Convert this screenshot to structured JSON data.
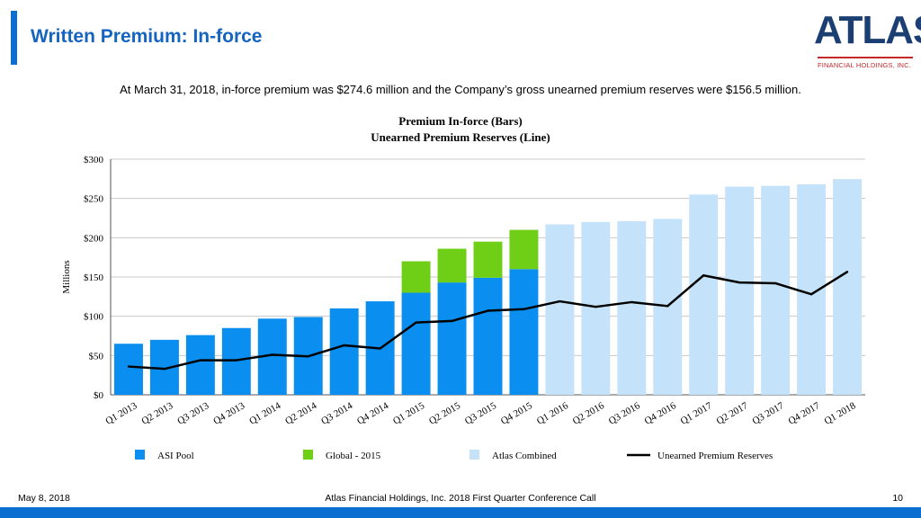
{
  "header": {
    "title": "Written Premium: In-force",
    "logo_word": "ATLAS",
    "logo_subtitle": "FINANCIAL HOLDINGS, INC."
  },
  "subtitle": "At March 31, 2018, in-force premium was $274.6 million and the Company’s gross unearned premium reserves were $156.5 million.",
  "footer": {
    "date": "May 8, 2018",
    "event": "Atlas Financial Holdings, Inc. 2018 First Quarter Conference Call",
    "page": "10"
  },
  "colors": {
    "asi_pool": "#0a8ff0",
    "global": "#6fcf17",
    "atlas_combined": "#c4e3fa",
    "line": "#000000",
    "brand_blue": "#0b6fd1",
    "logo_navy": "#1b3f73",
    "logo_red": "#c62828"
  },
  "chart_data": {
    "type": "bar",
    "title": "Premium In-force (Bars)",
    "subtitle": "Unearned Premium Reserves (Line)",
    "ylabel": "Millions",
    "xlabel": "",
    "ylim": [
      0,
      300
    ],
    "yticks": [
      0,
      50,
      100,
      150,
      200,
      250,
      300
    ],
    "ytick_labels": [
      "$0",
      "$50",
      "$100",
      "$150",
      "$200",
      "$250",
      "$300"
    ],
    "grid": true,
    "legend_position": "bottom",
    "categories": [
      "Q1 2013",
      "Q2 2013",
      "Q3 2013",
      "Q4 2013",
      "Q1 2014",
      "Q2 2014",
      "Q3 2014",
      "Q4 2014",
      "Q1 2015",
      "Q2 2015",
      "Q3 2015",
      "Q4 2015",
      "Q1 2016",
      "Q2 2016",
      "Q3 2016",
      "Q4 2016",
      "Q1 2017",
      "Q2 2017",
      "Q3 2017",
      "Q4 2017",
      "Q1 2018"
    ],
    "series": [
      {
        "name": "ASI Pool",
        "kind": "bar",
        "color": "#0a8ff0",
        "values": [
          65,
          70,
          76,
          85,
          97,
          99,
          110,
          119,
          130,
          143,
          149,
          160,
          null,
          null,
          null,
          null,
          null,
          null,
          null,
          null,
          null
        ]
      },
      {
        "name": "Global - 2015",
        "kind": "bar-stacked",
        "color": "#6fcf17",
        "values": [
          null,
          null,
          null,
          null,
          null,
          null,
          null,
          null,
          40,
          43,
          46,
          50,
          null,
          null,
          null,
          null,
          null,
          null,
          null,
          null,
          null
        ]
      },
      {
        "name": "Atlas Combined",
        "kind": "bar",
        "color": "#c4e3fa",
        "values": [
          null,
          null,
          null,
          null,
          null,
          null,
          null,
          null,
          null,
          null,
          null,
          null,
          217,
          220,
          221,
          224,
          255,
          265,
          266,
          268,
          274.6
        ]
      },
      {
        "name": "Unearned Premium Reserves",
        "kind": "line",
        "color": "#000000",
        "values": [
          36,
          33,
          44,
          44,
          51,
          49,
          63,
          59,
          92,
          94,
          107,
          109,
          119,
          112,
          118,
          113,
          152,
          143,
          142,
          128,
          156.5
        ]
      }
    ]
  }
}
